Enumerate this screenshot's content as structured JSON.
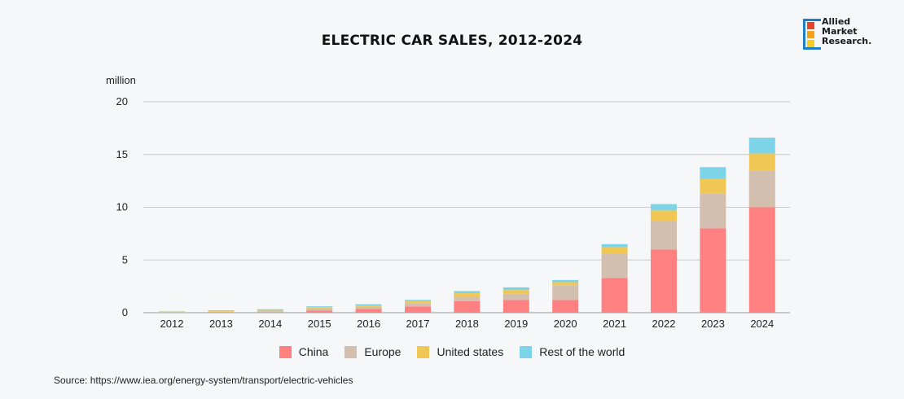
{
  "header": {
    "title": "ELECTRIC CAR SALES, 2012-2024",
    "logo_text": "Allied\nMarket\nResearch."
  },
  "footer": {
    "source": "Source: https://www.iea.org/energy-system/transport/electric-vehicles"
  },
  "chart_data": {
    "type": "bar",
    "stacked": true,
    "title": "ELECTRIC CAR SALES, 2012-2024",
    "unit_label": "million",
    "xlabel": "",
    "ylabel": "million",
    "ylim": [
      0,
      20
    ],
    "yticks": [
      0,
      5,
      10,
      15,
      20
    ],
    "grid": true,
    "legend_position": "bottom",
    "categories": [
      "2012",
      "2013",
      "2014",
      "2015",
      "2016",
      "2017",
      "2018",
      "2019",
      "2020",
      "2021",
      "2022",
      "2023",
      "2024"
    ],
    "series": [
      {
        "name": "China",
        "color": "#fe8080",
        "values": [
          0.01,
          0.02,
          0.05,
          0.2,
          0.35,
          0.6,
          1.1,
          1.2,
          1.2,
          3.3,
          6.0,
          8.0,
          10.0
        ]
      },
      {
        "name": "Europe",
        "color": "#d3bfaf",
        "values": [
          0.05,
          0.07,
          0.1,
          0.2,
          0.2,
          0.3,
          0.4,
          0.6,
          1.4,
          2.3,
          2.7,
          3.3,
          3.5
        ]
      },
      {
        "name": "United states",
        "color": "#f0c654",
        "values": [
          0.05,
          0.1,
          0.12,
          0.12,
          0.15,
          0.2,
          0.35,
          0.35,
          0.3,
          0.6,
          1.0,
          1.4,
          1.6
        ]
      },
      {
        "name": "Rest of the world",
        "color": "#7dd3e8",
        "values": [
          0.02,
          0.04,
          0.06,
          0.08,
          0.1,
          0.12,
          0.2,
          0.25,
          0.2,
          0.3,
          0.6,
          1.1,
          1.5
        ]
      }
    ]
  }
}
